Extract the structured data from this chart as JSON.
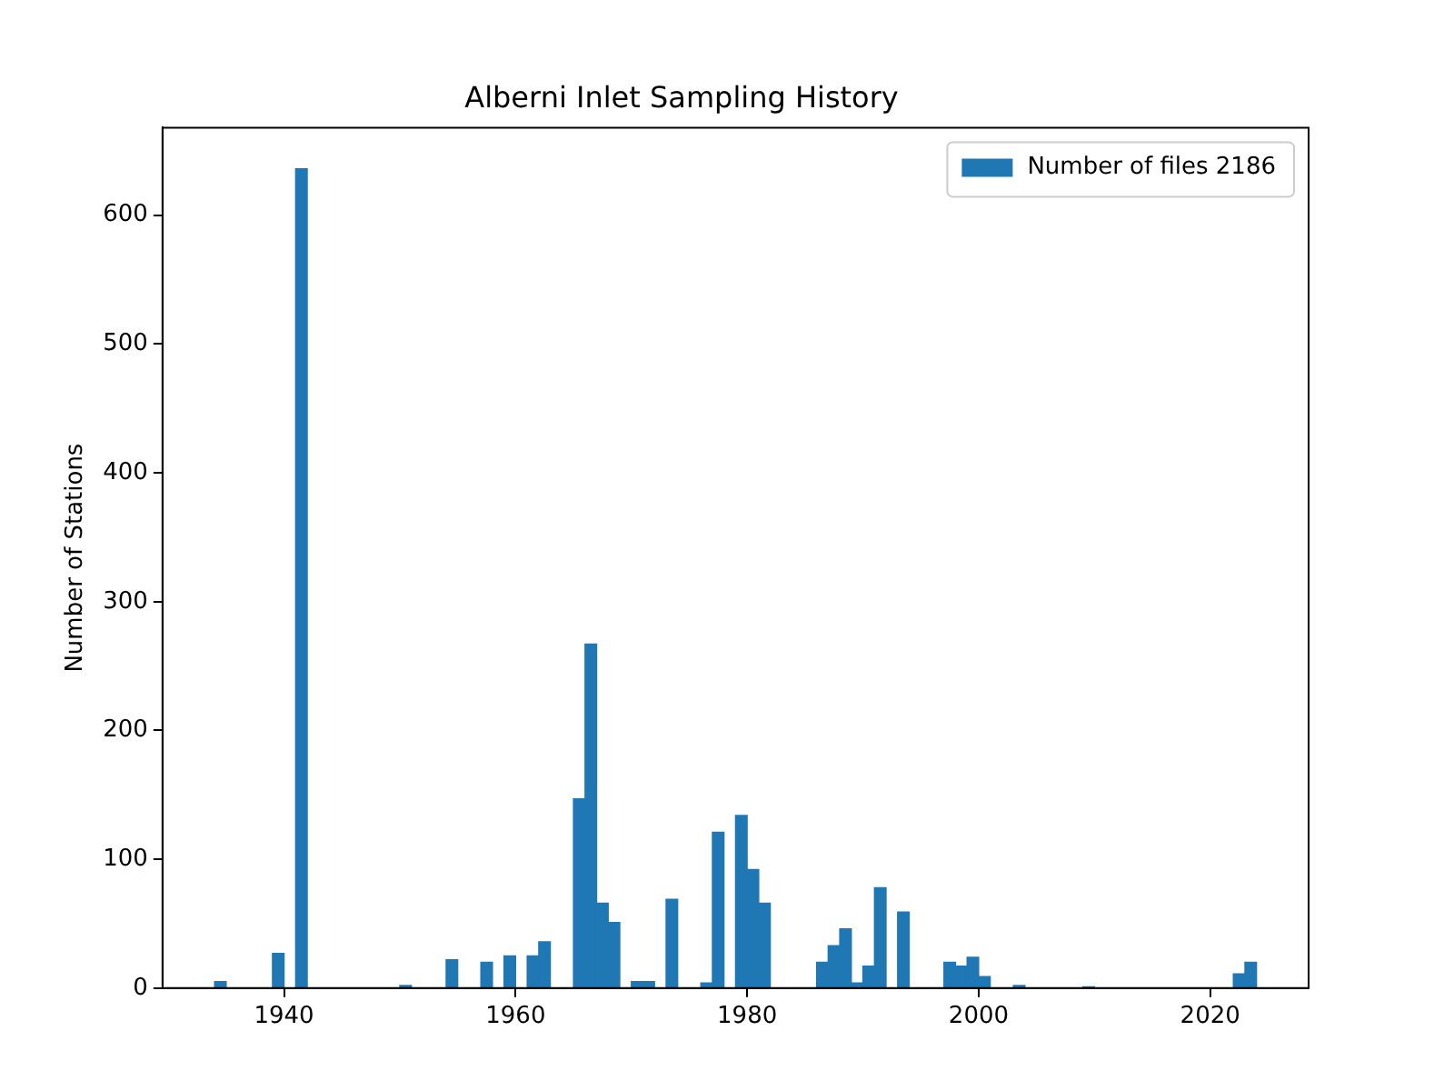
{
  "chart_data": {
    "type": "histogram",
    "title": "Alberni Inlet Sampling History",
    "ylabel": "Number of Stations",
    "bins": [
      1934,
      1935,
      1936,
      1937,
      1938,
      1939,
      1940,
      1941,
      1942,
      1943,
      1944,
      1945,
      1946,
      1947,
      1948,
      1949,
      1950,
      1951,
      1952,
      1953,
      1954,
      1955,
      1956,
      1957,
      1958,
      1959,
      1960,
      1961,
      1962,
      1963,
      1964,
      1965,
      1966,
      1967,
      1968,
      1969,
      1970,
      1971,
      1972,
      1973,
      1974,
      1975,
      1976,
      1977,
      1978,
      1979,
      1980,
      1981,
      1982,
      1983,
      1984,
      1985,
      1986,
      1987,
      1988,
      1989,
      1990,
      1991,
      1992,
      1993,
      1994,
      1995,
      1996,
      1997,
      1998,
      1999,
      2000,
      2001,
      2002,
      2003,
      2004,
      2005,
      2006,
      2007,
      2008,
      2009,
      2010,
      2011,
      2012,
      2013,
      2014,
      2015,
      2016,
      2017,
      2018,
      2019,
      2020,
      2021,
      2022,
      2023,
      2024
    ],
    "series": [
      {
        "name": "Number of files 2186",
        "color": "#1f77b4",
        "values": [
          5,
          0,
          0,
          0,
          0,
          27,
          0,
          636,
          0,
          0,
          0,
          0,
          0,
          0,
          0,
          0,
          2,
          0,
          0,
          0,
          22,
          0,
          0,
          20,
          0,
          25,
          0,
          25,
          36,
          0,
          0,
          147,
          267,
          66,
          51,
          0,
          5,
          5,
          0,
          69,
          0,
          0,
          4,
          121,
          0,
          134,
          92,
          66,
          0,
          0,
          0,
          0,
          20,
          33,
          46,
          4,
          17,
          78,
          0,
          59,
          0,
          0,
          0,
          20,
          17,
          24,
          9,
          0,
          0,
          2,
          0,
          0,
          0,
          0,
          0,
          1,
          0,
          0,
          0,
          0,
          0,
          0,
          0,
          0,
          0,
          0,
          0,
          0,
          11,
          20
        ]
      }
    ],
    "xlim": [
      1929.5,
      2028.5
    ],
    "xticks": [
      1940,
      1960,
      1980,
      2000,
      2020
    ],
    "ylim": [
      0,
      668
    ],
    "yticks": [
      0,
      100,
      200,
      300,
      400,
      500,
      600
    ],
    "legend": "top right"
  }
}
